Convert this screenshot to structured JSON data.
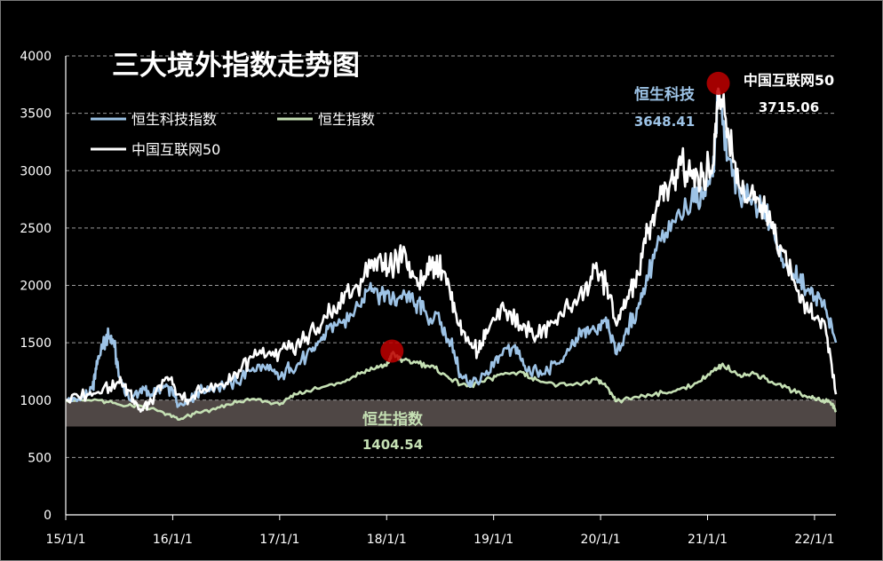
{
  "chart_data": {
    "type": "line",
    "title": "三大境外指数走势图",
    "xlabel": "",
    "ylabel": "",
    "ylim": [
      0,
      4000
    ],
    "yticks": [
      0,
      500,
      1000,
      1500,
      2000,
      2500,
      3000,
      3500,
      4000
    ],
    "xticks": [
      "15/1/1",
      "16/1/1",
      "17/1/1",
      "18/1/1",
      "19/1/1",
      "20/1/1",
      "21/1/1",
      "22/1/1"
    ],
    "xrange": [
      0,
      7.2
    ],
    "grid": true,
    "legend_position": "top-left",
    "shaded_band": [
      770,
      1000
    ],
    "series": [
      {
        "name": "恒生科技指数",
        "color": "#9dc3e6",
        "points": [
          [
            0,
            1000
          ],
          [
            0.15,
            1020
          ],
          [
            0.25,
            1100
          ],
          [
            0.3,
            1350
          ],
          [
            0.35,
            1500
          ],
          [
            0.4,
            1560
          ],
          [
            0.45,
            1500
          ],
          [
            0.5,
            1200
          ],
          [
            0.6,
            1000
          ],
          [
            0.7,
            1100
          ],
          [
            0.8,
            1050
          ],
          [
            0.9,
            1120
          ],
          [
            1.0,
            1080
          ],
          [
            1.05,
            950
          ],
          [
            1.15,
            1000
          ],
          [
            1.25,
            1080
          ],
          [
            1.4,
            1120
          ],
          [
            1.6,
            1150
          ],
          [
            1.75,
            1280
          ],
          [
            1.9,
            1260
          ],
          [
            2.0,
            1200
          ],
          [
            2.1,
            1280
          ],
          [
            2.25,
            1380
          ],
          [
            2.35,
            1480
          ],
          [
            2.45,
            1620
          ],
          [
            2.6,
            1700
          ],
          [
            2.75,
            1820
          ],
          [
            2.85,
            2020
          ],
          [
            2.95,
            1920
          ],
          [
            3.05,
            1880
          ],
          [
            3.15,
            1920
          ],
          [
            3.25,
            1860
          ],
          [
            3.35,
            1780
          ],
          [
            3.5,
            1660
          ],
          [
            3.6,
            1500
          ],
          [
            3.7,
            1200
          ],
          [
            3.8,
            1150
          ],
          [
            3.95,
            1220
          ],
          [
            4.05,
            1380
          ],
          [
            4.2,
            1480
          ],
          [
            4.3,
            1260
          ],
          [
            4.45,
            1220
          ],
          [
            4.6,
            1320
          ],
          [
            4.75,
            1480
          ],
          [
            4.85,
            1620
          ],
          [
            4.95,
            1600
          ],
          [
            5.05,
            1720
          ],
          [
            5.15,
            1400
          ],
          [
            5.25,
            1620
          ],
          [
            5.35,
            1800
          ],
          [
            5.45,
            2100
          ],
          [
            5.55,
            2400
          ],
          [
            5.7,
            2550
          ],
          [
            5.85,
            2750
          ],
          [
            5.95,
            2800
          ],
          [
            6.05,
            2950
          ],
          [
            6.1,
            3648
          ],
          [
            6.2,
            3100
          ],
          [
            6.3,
            2780
          ],
          [
            6.4,
            2750
          ],
          [
            6.5,
            2700
          ],
          [
            6.6,
            2500
          ],
          [
            6.7,
            2230
          ],
          [
            6.8,
            2100
          ],
          [
            6.9,
            2000
          ],
          [
            7.0,
            1900
          ],
          [
            7.1,
            1800
          ],
          [
            7.2,
            1500
          ]
        ]
      },
      {
        "name": "恒生指数",
        "color": "#c5e0b4",
        "points": [
          [
            0,
            1000
          ],
          [
            0.3,
            1000
          ],
          [
            0.5,
            960
          ],
          [
            0.7,
            950
          ],
          [
            0.9,
            900
          ],
          [
            1.05,
            830
          ],
          [
            1.2,
            880
          ],
          [
            1.4,
            920
          ],
          [
            1.6,
            980
          ],
          [
            1.8,
            1010
          ],
          [
            2.0,
            960
          ],
          [
            2.15,
            1050
          ],
          [
            2.35,
            1100
          ],
          [
            2.55,
            1150
          ],
          [
            2.75,
            1230
          ],
          [
            2.9,
            1280
          ],
          [
            3.0,
            1300
          ],
          [
            3.05,
            1404.54
          ],
          [
            3.15,
            1350
          ],
          [
            3.3,
            1320
          ],
          [
            3.45,
            1280
          ],
          [
            3.6,
            1180
          ],
          [
            3.75,
            1120
          ],
          [
            3.9,
            1160
          ],
          [
            4.05,
            1220
          ],
          [
            4.25,
            1250
          ],
          [
            4.4,
            1180
          ],
          [
            4.6,
            1130
          ],
          [
            4.8,
            1140
          ],
          [
            4.95,
            1180
          ],
          [
            5.05,
            1120
          ],
          [
            5.15,
            990
          ],
          [
            5.3,
            1020
          ],
          [
            5.5,
            1050
          ],
          [
            5.7,
            1080
          ],
          [
            5.9,
            1150
          ],
          [
            6.05,
            1250
          ],
          [
            6.15,
            1300
          ],
          [
            6.3,
            1220
          ],
          [
            6.45,
            1230
          ],
          [
            6.6,
            1160
          ],
          [
            6.8,
            1080
          ],
          [
            6.95,
            1030
          ],
          [
            7.05,
            1000
          ],
          [
            7.15,
            980
          ],
          [
            7.2,
            910
          ]
        ]
      },
      {
        "name": "中国互联网50",
        "color": "#ffffff",
        "points": [
          [
            0,
            1000
          ],
          [
            0.2,
            1050
          ],
          [
            0.35,
            1100
          ],
          [
            0.5,
            1150
          ],
          [
            0.6,
            1080
          ],
          [
            0.7,
            900
          ],
          [
            0.8,
            1000
          ],
          [
            0.95,
            1200
          ],
          [
            1.05,
            1050
          ],
          [
            1.15,
            1000
          ],
          [
            1.3,
            1100
          ],
          [
            1.5,
            1150
          ],
          [
            1.65,
            1300
          ],
          [
            1.8,
            1400
          ],
          [
            1.95,
            1380
          ],
          [
            2.1,
            1450
          ],
          [
            2.25,
            1550
          ],
          [
            2.4,
            1680
          ],
          [
            2.55,
            1850
          ],
          [
            2.7,
            1980
          ],
          [
            2.85,
            2150
          ],
          [
            2.95,
            2220
          ],
          [
            3.05,
            2150
          ],
          [
            3.15,
            2280
          ],
          [
            3.25,
            2080
          ],
          [
            3.35,
            2080
          ],
          [
            3.45,
            2200
          ],
          [
            3.55,
            2100
          ],
          [
            3.65,
            1750
          ],
          [
            3.75,
            1520
          ],
          [
            3.85,
            1420
          ],
          [
            3.95,
            1600
          ],
          [
            4.1,
            1780
          ],
          [
            4.25,
            1650
          ],
          [
            4.4,
            1560
          ],
          [
            4.55,
            1680
          ],
          [
            4.7,
            1800
          ],
          [
            4.85,
            1950
          ],
          [
            4.95,
            2150
          ],
          [
            5.05,
            2000
          ],
          [
            5.15,
            1650
          ],
          [
            5.25,
            1900
          ],
          [
            5.35,
            2100
          ],
          [
            5.45,
            2500
          ],
          [
            5.55,
            2750
          ],
          [
            5.65,
            2900
          ],
          [
            5.75,
            3050
          ],
          [
            5.85,
            3000
          ],
          [
            5.95,
            2950
          ],
          [
            6.05,
            3050
          ],
          [
            6.1,
            3715.06
          ],
          [
            6.2,
            3250
          ],
          [
            6.3,
            2850
          ],
          [
            6.4,
            2780
          ],
          [
            6.5,
            2700
          ],
          [
            6.6,
            2500
          ],
          [
            6.7,
            2300
          ],
          [
            6.8,
            2050
          ],
          [
            6.9,
            1850
          ],
          [
            7.0,
            1700
          ],
          [
            7.1,
            1650
          ],
          [
            7.2,
            1050
          ]
        ]
      }
    ],
    "annotations": [
      {
        "label": "恒生科技",
        "value_text": "3648.41",
        "x": 6.1,
        "y": 3648.41,
        "color": "#9dc3e6"
      },
      {
        "label": "中国互联网50",
        "value_text": "3715.06",
        "x": 6.1,
        "y": 3715.06,
        "color": "#ffffff"
      },
      {
        "label": "恒生指数",
        "value_text": "1404.54",
        "x": 3.05,
        "y": 1404.54,
        "color": "#c5e0b4"
      }
    ],
    "marker_color": "#c00000",
    "shade_color": "#4f4745",
    "grid_color": "#9a9a9a",
    "text_color": "#ffffff"
  }
}
